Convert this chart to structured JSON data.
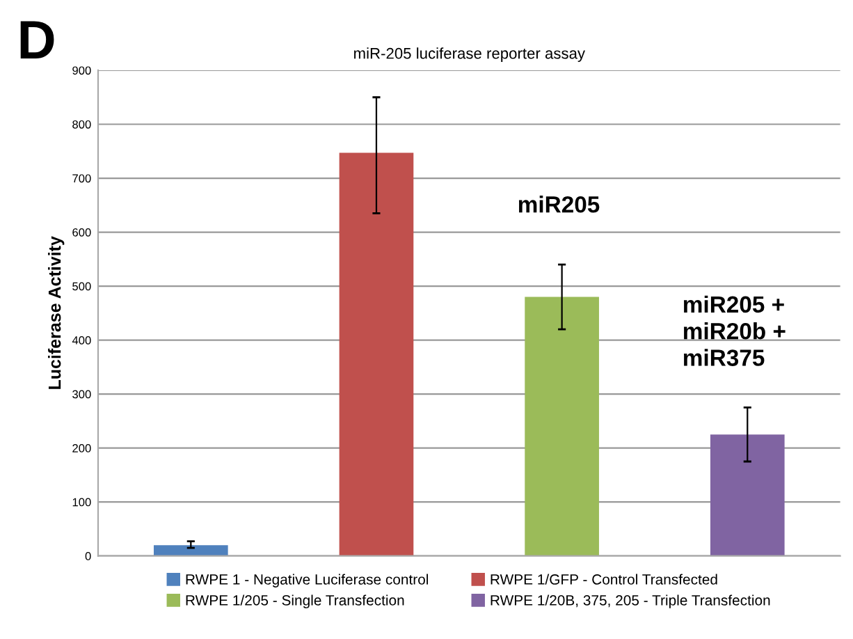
{
  "chart_data": {
    "type": "bar",
    "title": "miR-205 luciferase reporter assay",
    "ylabel": "Luciferase Activity",
    "categories": [
      null,
      null,
      null,
      null
    ],
    "series": [
      {
        "name": "RWPE 1 - Negative Luciferase control",
        "color": "#4f81bd",
        "values": [
          20,
          null,
          null,
          null
        ],
        "errors": [
          [
            15,
            27
          ],
          null,
          null,
          null
        ]
      },
      {
        "name": "RWPE 1/GFP - Control Transfected",
        "color": "#c0504d",
        "values": [
          null,
          747,
          null,
          null
        ],
        "errors": [
          null,
          [
            635,
            850
          ],
          null,
          null
        ]
      },
      {
        "name": "RWPE 1/205 - Single Transfection",
        "color": "#9bbb59",
        "values": [
          null,
          null,
          480,
          null
        ],
        "errors": [
          null,
          null,
          [
            420,
            540
          ],
          null
        ]
      },
      {
        "name": "RWPE 1/20B, 375, 205 - Triple Transfection",
        "color": "#8064a2",
        "values": [
          null,
          null,
          null,
          225
        ],
        "errors": [
          null,
          null,
          null,
          [
            175,
            275
          ]
        ]
      }
    ],
    "ylim": [
      0,
      900
    ],
    "yticks": [
      0,
      100,
      200,
      300,
      400,
      500,
      600,
      700,
      800,
      900
    ],
    "grid": "y",
    "legend": "bottom",
    "tick_labels": "y",
    "annotations": [
      "D",
      "miR205",
      "miR205 +\nmiR20b +\nmiR375"
    ]
  }
}
